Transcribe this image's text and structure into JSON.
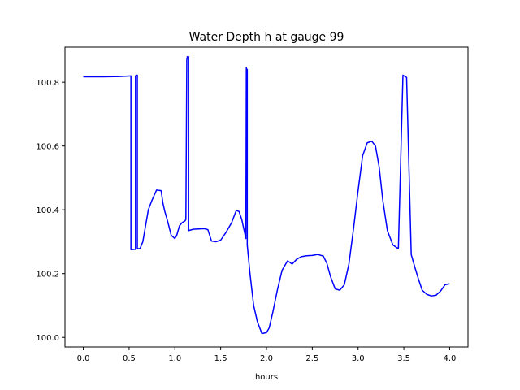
{
  "chart_data": {
    "type": "line",
    "title": "Water Depth h at gauge 99",
    "xlabel": "hours",
    "ylabel": "",
    "xlim": [
      -0.2,
      4.2
    ],
    "ylim": [
      99.97,
      100.91
    ],
    "xticks": [
      0.0,
      0.5,
      1.0,
      1.5,
      2.0,
      2.5,
      3.0,
      3.5,
      4.0
    ],
    "xtick_labels": [
      "0.0",
      "0.5",
      "1.0",
      "1.5",
      "2.0",
      "2.5",
      "3.0",
      "3.5",
      "4.0"
    ],
    "yticks": [
      100.0,
      100.2,
      100.4,
      100.6,
      100.8
    ],
    "ytick_labels": [
      "100.0",
      "100.2",
      "100.4",
      "100.6",
      "100.8"
    ],
    "grid": false,
    "legend": "none",
    "series": [
      {
        "color": "#0000ff",
        "x": [
          0.0,
          0.2,
          0.4,
          0.52,
          0.52,
          0.56,
          0.57,
          0.57,
          0.58,
          0.59,
          0.59,
          0.62,
          0.65,
          0.68,
          0.71,
          0.75,
          0.8,
          0.85,
          0.87,
          0.89,
          0.92,
          0.96,
          1.0,
          1.02,
          1.05,
          1.08,
          1.11,
          1.12,
          1.13,
          1.135,
          1.135,
          1.15,
          1.15,
          1.2,
          1.26,
          1.32,
          1.36,
          1.4,
          1.45,
          1.5,
          1.56,
          1.62,
          1.67,
          1.7,
          1.73,
          1.76,
          1.775,
          1.78,
          1.785,
          1.79,
          1.79,
          1.82,
          1.86,
          1.9,
          1.95,
          2.0,
          2.03,
          2.07,
          2.12,
          2.17,
          2.23,
          2.28,
          2.33,
          2.38,
          2.44,
          2.5,
          2.56,
          2.62,
          2.66,
          2.7,
          2.75,
          2.8,
          2.85,
          2.9,
          2.95,
          3.0,
          3.05,
          3.1,
          3.15,
          3.19,
          3.23,
          3.27,
          3.32,
          3.38,
          3.44,
          3.49,
          3.53,
          3.53,
          3.58,
          3.58,
          3.59,
          3.62,
          3.66,
          3.7,
          3.75,
          3.8,
          3.85,
          3.9,
          3.95,
          4.0
        ],
        "y": [
          100.817,
          100.817,
          100.818,
          100.82,
          100.275,
          100.276,
          100.276,
          100.82,
          100.822,
          100.822,
          100.278,
          100.279,
          100.3,
          100.35,
          100.4,
          100.43,
          100.462,
          100.46,
          100.42,
          100.395,
          100.365,
          100.32,
          100.31,
          100.32,
          100.35,
          100.36,
          100.365,
          100.37,
          100.872,
          100.875,
          100.88,
          100.88,
          100.335,
          100.339,
          100.34,
          100.341,
          100.338,
          100.302,
          100.3,
          100.305,
          100.33,
          100.36,
          100.398,
          100.395,
          100.37,
          100.33,
          100.31,
          100.845,
          100.84,
          100.84,
          100.29,
          100.2,
          100.1,
          100.05,
          100.012,
          100.015,
          100.03,
          100.08,
          100.15,
          100.21,
          100.24,
          100.23,
          100.245,
          100.253,
          100.256,
          100.257,
          100.26,
          100.255,
          100.232,
          100.19,
          100.152,
          100.148,
          100.165,
          100.23,
          100.34,
          100.46,
          100.57,
          100.61,
          100.615,
          100.6,
          100.535,
          100.43,
          100.335,
          100.29,
          100.278,
          100.822,
          100.815,
          100.815,
          100.265,
          100.26,
          100.25,
          100.22,
          100.182,
          100.148,
          100.135,
          100.13,
          100.132,
          100.145,
          100.165,
          100.168
        ]
      }
    ]
  }
}
